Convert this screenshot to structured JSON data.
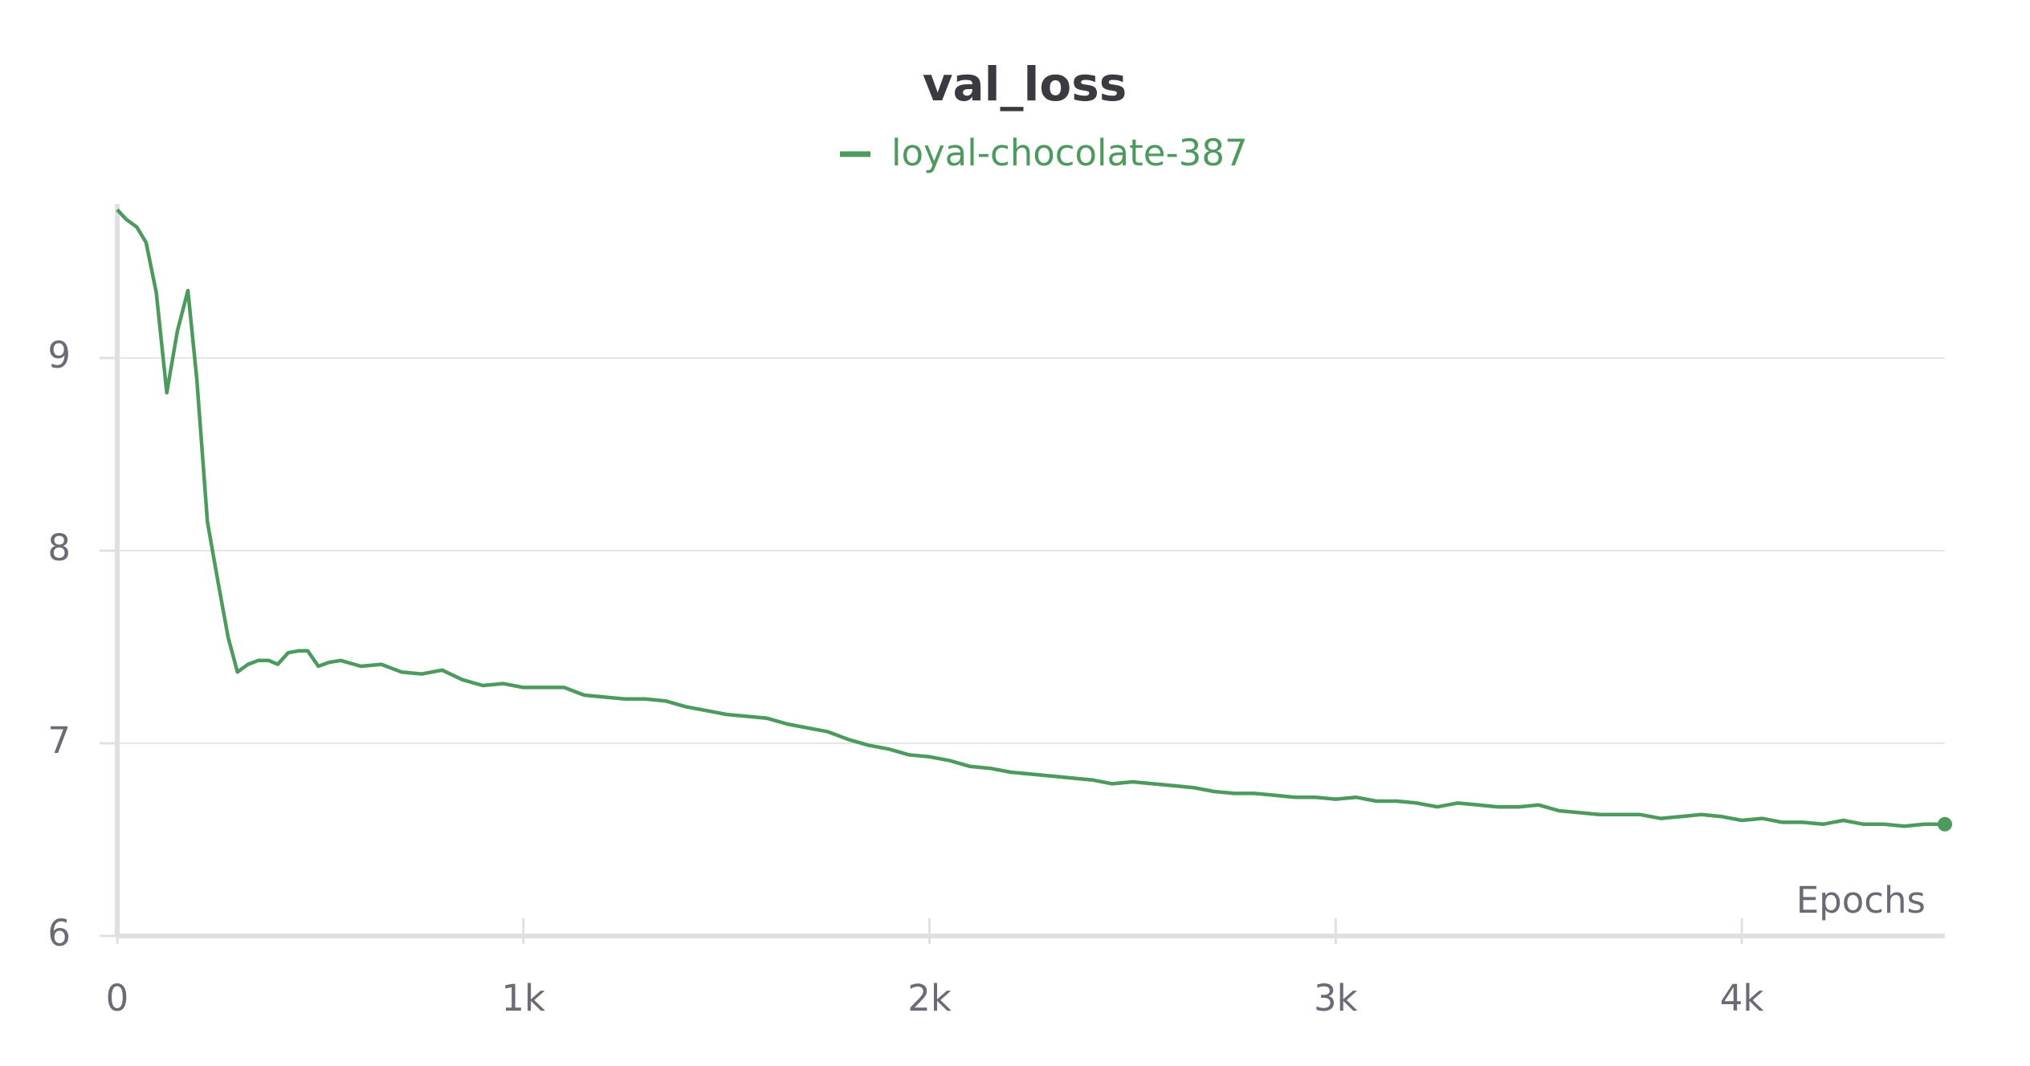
{
  "chart_data": {
    "type": "line",
    "title": "val_loss",
    "xlabel": "Epochs",
    "x": [
      0,
      22,
      48,
      71,
      96,
      122,
      148,
      174,
      196,
      222,
      248,
      273,
      296,
      322,
      347,
      373,
      395,
      421,
      447,
      469,
      495,
      521,
      550,
      600,
      650,
      700,
      750,
      800,
      850,
      900,
      950,
      1000,
      1050,
      1100,
      1150,
      1200,
      1250,
      1300,
      1350,
      1400,
      1450,
      1500,
      1550,
      1600,
      1650,
      1700,
      1750,
      1800,
      1850,
      1900,
      1950,
      2000,
      2050,
      2100,
      2150,
      2200,
      2250,
      2300,
      2350,
      2400,
      2450,
      2500,
      2550,
      2600,
      2650,
      2700,
      2750,
      2800,
      2850,
      2900,
      2950,
      3000,
      3050,
      3100,
      3150,
      3200,
      3250,
      3300,
      3350,
      3400,
      3450,
      3500,
      3550,
      3600,
      3650,
      3700,
      3750,
      3800,
      3850,
      3900,
      3950,
      4000,
      4050,
      4100,
      4150,
      4200,
      4250,
      4300,
      4350,
      4400,
      4450,
      4500
    ],
    "series": [
      {
        "name": "loyal-chocolate-387",
        "color": "#4c9a5e",
        "values": [
          9.77,
          9.72,
          9.68,
          9.6,
          9.34,
          8.82,
          9.14,
          9.35,
          8.89,
          8.15,
          7.84,
          7.55,
          7.37,
          7.41,
          7.43,
          7.43,
          7.41,
          7.47,
          7.48,
          7.48,
          7.4,
          7.42,
          7.43,
          7.4,
          7.41,
          7.37,
          7.36,
          7.38,
          7.33,
          7.3,
          7.31,
          7.29,
          7.29,
          7.29,
          7.25,
          7.24,
          7.23,
          7.23,
          7.22,
          7.19,
          7.17,
          7.15,
          7.14,
          7.13,
          7.1,
          7.08,
          7.06,
          7.02,
          6.99,
          6.97,
          6.94,
          6.93,
          6.91,
          6.88,
          6.87,
          6.85,
          6.84,
          6.83,
          6.82,
          6.81,
          6.79,
          6.8,
          6.79,
          6.78,
          6.77,
          6.75,
          6.74,
          6.74,
          6.73,
          6.72,
          6.72,
          6.71,
          6.72,
          6.7,
          6.7,
          6.69,
          6.67,
          6.69,
          6.68,
          6.67,
          6.67,
          6.68,
          6.65,
          6.64,
          6.63,
          6.63,
          6.63,
          6.61,
          6.62,
          6.63,
          6.62,
          6.6,
          6.61,
          6.59,
          6.59,
          6.58,
          6.6,
          6.58,
          6.58,
          6.57,
          6.58,
          6.58
        ]
      }
    ],
    "xlim": [
      0,
      4500
    ],
    "ylim": [
      6,
      9.8
    ],
    "xticks": [
      0,
      {
        "value": 1000,
        "label": "1k"
      },
      {
        "value": 2000,
        "label": "2k"
      },
      {
        "value": 3000,
        "label": "3k"
      },
      {
        "value": 4000,
        "label": "4k"
      }
    ],
    "yticks": [
      6,
      7,
      8,
      9
    ],
    "grid": true
  }
}
